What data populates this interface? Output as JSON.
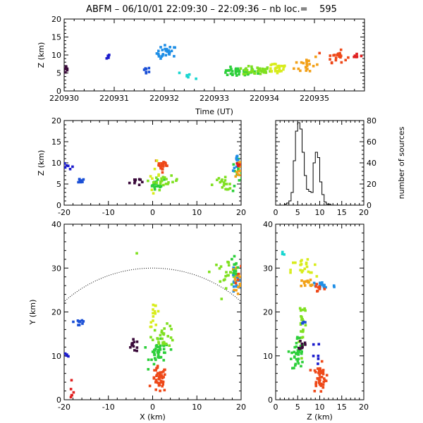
{
  "title": {
    "station": "ABFM",
    "date": "06/10/01",
    "start": "22:09:30",
    "end": "22:09:36",
    "count_label": "nb loc.=",
    "count": "595"
  },
  "chart_data": [
    {
      "id": "time-height",
      "type": "scatter",
      "xlabel": "Time (UT)",
      "ylabel": "Z (km)",
      "xlim": [
        220930,
        220936
      ],
      "ylim": [
        0,
        20
      ],
      "x_ticks": [
        "220930",
        "220931",
        "220932",
        "220933",
        "220934",
        "220935"
      ],
      "y_ticks": [
        "0",
        "5",
        "10",
        "15",
        "20"
      ],
      "clusters": [
        {
          "x": 220930.05,
          "y": 6.0,
          "sx": 0.03,
          "sy": 0.6,
          "n": 10,
          "color": "#3a0a3a"
        },
        {
          "x": 220930.85,
          "y": 9.5,
          "sx": 0.04,
          "sy": 0.4,
          "n": 5,
          "color": "#1a1acc"
        },
        {
          "x": 220931.65,
          "y": 6.0,
          "sx": 0.04,
          "sy": 0.4,
          "n": 7,
          "color": "#1a4fd6"
        },
        {
          "x": 220932.05,
          "y": 10.5,
          "sx": 0.1,
          "sy": 1.1,
          "n": 26,
          "color": "#1e8ee6"
        },
        {
          "x": 220932.55,
          "y": 4.4,
          "sx": 0.12,
          "sy": 0.5,
          "n": 6,
          "color": "#18d6d0"
        },
        {
          "x": 220933.45,
          "y": 5.2,
          "sx": 0.2,
          "sy": 0.6,
          "n": 40,
          "color": "#2ccf3a"
        },
        {
          "x": 220933.85,
          "y": 5.6,
          "sx": 0.14,
          "sy": 0.6,
          "n": 34,
          "color": "#7fe020"
        },
        {
          "x": 220934.25,
          "y": 6.5,
          "sx": 0.12,
          "sy": 0.9,
          "n": 26,
          "color": "#d8ec1c"
        },
        {
          "x": 220934.85,
          "y": 7.4,
          "sx": 0.12,
          "sy": 1.4,
          "n": 20,
          "color": "#f2a018"
        },
        {
          "x": 220935.45,
          "y": 9.6,
          "sx": 0.1,
          "sy": 0.8,
          "n": 22,
          "color": "#ee4818"
        },
        {
          "x": 220935.85,
          "y": 9.6,
          "sx": 0.07,
          "sy": 0.3,
          "n": 8,
          "color": "#e02020"
        }
      ]
    },
    {
      "id": "x-z",
      "type": "scatter",
      "xlabel": "",
      "ylabel": "Z (km)",
      "xlim": [
        -20,
        20
      ],
      "ylim": [
        0,
        20
      ],
      "x_ticks": [
        "-20",
        "-10",
        "0",
        "10",
        "20"
      ],
      "y_ticks": [
        "0",
        "5",
        "10",
        "15",
        "20"
      ],
      "clusters": [
        {
          "x": -19.0,
          "y": 9.3,
          "sx": 0.5,
          "sy": 0.5,
          "n": 6,
          "color": "#1a1acc"
        },
        {
          "x": -16.5,
          "y": 5.8,
          "sx": 0.8,
          "sy": 0.4,
          "n": 8,
          "color": "#1a4fd6"
        },
        {
          "x": -4.0,
          "y": 5.6,
          "sx": 0.6,
          "sy": 0.5,
          "n": 10,
          "color": "#3a0a3a"
        },
        {
          "x": 1.0,
          "y": 5.0,
          "sx": 0.8,
          "sy": 0.6,
          "n": 16,
          "color": "#2ccf3a"
        },
        {
          "x": 3.0,
          "y": 5.6,
          "sx": 1.4,
          "sy": 0.6,
          "n": 20,
          "color": "#7fe020"
        },
        {
          "x": 2.2,
          "y": 9.5,
          "sx": 0.8,
          "sy": 0.8,
          "n": 20,
          "color": "#ee4818"
        },
        {
          "x": 0.4,
          "y": 7.0,
          "sx": 0.6,
          "sy": 1.6,
          "n": 8,
          "color": "#d8ec1c"
        },
        {
          "x": 16.0,
          "y": 5.0,
          "sx": 1.6,
          "sy": 0.7,
          "n": 18,
          "color": "#7fe020"
        },
        {
          "x": 19.0,
          "y": 7.0,
          "sx": 0.6,
          "sy": 2.0,
          "n": 14,
          "color": "#2ccf3a"
        },
        {
          "x": 19.2,
          "y": 10.0,
          "sx": 0.5,
          "sy": 1.0,
          "n": 10,
          "color": "#1e8ee6"
        },
        {
          "x": 19.4,
          "y": 8.0,
          "sx": 0.4,
          "sy": 2.0,
          "n": 10,
          "color": "#f2a018"
        },
        {
          "x": 19.5,
          "y": 9.6,
          "sx": 0.3,
          "sy": 0.3,
          "n": 4,
          "color": "#e02020"
        }
      ]
    },
    {
      "id": "z-histogram",
      "type": "line",
      "xlabel": "",
      "ylabel": "number of sources",
      "xlim": [
        0,
        20
      ],
      "ylim": [
        0,
        80
      ],
      "x_ticks": [
        "0",
        "5",
        "10",
        "15",
        "20"
      ],
      "y_ticks": [
        "0",
        "20",
        "40",
        "60",
        "80"
      ],
      "bin_width": 0.5,
      "bins_start": 0,
      "counts": [
        0,
        0,
        0,
        0,
        1,
        2,
        4,
        12,
        42,
        70,
        78,
        72,
        50,
        28,
        15,
        13,
        12,
        40,
        50,
        45,
        22,
        10,
        3,
        1,
        1,
        0,
        0,
        0,
        0,
        0,
        0,
        0,
        0,
        0,
        0,
        0,
        0,
        0,
        0,
        0
      ]
    },
    {
      "id": "x-y",
      "type": "scatter",
      "xlabel": "X (km)",
      "ylabel": "Y (km)",
      "xlim": [
        -20,
        20
      ],
      "ylim": [
        0,
        40
      ],
      "x_ticks": [
        "-20",
        "-10",
        "0",
        "10",
        "20"
      ],
      "y_ticks": [
        "0",
        "10",
        "20",
        "30",
        "40"
      ],
      "range_ring_radius_km": 30,
      "clusters": [
        {
          "x": -16.5,
          "y": 17.8,
          "sx": 0.7,
          "sy": 0.7,
          "n": 10,
          "color": "#1a4fd6"
        },
        {
          "x": -19.5,
          "y": 10.2,
          "sx": 0.4,
          "sy": 0.6,
          "n": 5,
          "color": "#1a1acc"
        },
        {
          "x": -18.2,
          "y": 1.5,
          "sx": 0.3,
          "sy": 0.9,
          "n": 6,
          "color": "#e02020"
        },
        {
          "x": -4.2,
          "y": 12.3,
          "sx": 0.7,
          "sy": 0.7,
          "n": 12,
          "color": "#3a0a3a"
        },
        {
          "x": 1.5,
          "y": 4.5,
          "sx": 0.8,
          "sy": 1.5,
          "n": 45,
          "color": "#ee4818"
        },
        {
          "x": 1.5,
          "y": 10.5,
          "sx": 1.1,
          "sy": 1.4,
          "n": 40,
          "color": "#2ccf3a"
        },
        {
          "x": 2.5,
          "y": 14.5,
          "sx": 1.3,
          "sy": 1.2,
          "n": 28,
          "color": "#7fe020"
        },
        {
          "x": 0.5,
          "y": 19.5,
          "sx": 0.6,
          "sy": 1.4,
          "n": 14,
          "color": "#d8ec1c"
        },
        {
          "x": -3.5,
          "y": 33.3,
          "sx": 0.1,
          "sy": 0.1,
          "n": 1,
          "color": "#7fe020"
        },
        {
          "x": 16.5,
          "y": 29.0,
          "sx": 1.6,
          "sy": 1.5,
          "n": 24,
          "color": "#7fe020"
        },
        {
          "x": 18.8,
          "y": 26.5,
          "sx": 0.6,
          "sy": 1.6,
          "n": 20,
          "color": "#1e8ee6"
        },
        {
          "x": 19.0,
          "y": 27.5,
          "sx": 0.5,
          "sy": 1.5,
          "n": 14,
          "color": "#f2a018"
        },
        {
          "x": 19.2,
          "y": 28.0,
          "sx": 0.4,
          "sy": 1.2,
          "n": 5,
          "color": "#ee4818"
        },
        {
          "x": 18.5,
          "y": 30.5,
          "sx": 0.6,
          "sy": 1.6,
          "n": 10,
          "color": "#2ccf3a"
        }
      ]
    },
    {
      "id": "z-y",
      "type": "scatter",
      "xlabel": "Z (km)",
      "ylabel": "",
      "xlim": [
        0,
        20
      ],
      "ylim": [
        0,
        40
      ],
      "x_ticks": [
        "0",
        "5",
        "10",
        "15",
        "20"
      ],
      "y_ticks": [
        "0",
        "10",
        "20",
        "30",
        "40"
      ],
      "clusters": [
        {
          "x": 1.5,
          "y": 33.0,
          "sx": 0.3,
          "sy": 0.4,
          "n": 3,
          "color": "#18d6d0"
        },
        {
          "x": 6.5,
          "y": 29.5,
          "sx": 1.5,
          "sy": 1.5,
          "n": 22,
          "color": "#d8ec1c"
        },
        {
          "x": 10.5,
          "y": 26.0,
          "sx": 1.6,
          "sy": 0.7,
          "n": 18,
          "color": "#1e8ee6"
        },
        {
          "x": 7.5,
          "y": 26.5,
          "sx": 1.0,
          "sy": 0.6,
          "n": 12,
          "color": "#f2a018"
        },
        {
          "x": 9.6,
          "y": 25.6,
          "sx": 0.7,
          "sy": 0.6,
          "n": 8,
          "color": "#ee4818"
        },
        {
          "x": 6.0,
          "y": 18.0,
          "sx": 0.5,
          "sy": 3.0,
          "n": 22,
          "color": "#7fe020"
        },
        {
          "x": 5.0,
          "y": 10.5,
          "sx": 0.7,
          "sy": 2.0,
          "n": 38,
          "color": "#2ccf3a"
        },
        {
          "x": 6.0,
          "y": 12.5,
          "sx": 0.3,
          "sy": 0.6,
          "n": 10,
          "color": "#3a0a3a"
        },
        {
          "x": 10.0,
          "y": 5.0,
          "sx": 0.8,
          "sy": 1.6,
          "n": 45,
          "color": "#ee4818"
        },
        {
          "x": 9.0,
          "y": 10.5,
          "sx": 0.5,
          "sy": 1.2,
          "n": 6,
          "color": "#1a1acc"
        },
        {
          "x": 6.0,
          "y": 17.5,
          "sx": 0.3,
          "sy": 0.4,
          "n": 4,
          "color": "#1a4fd6"
        }
      ]
    }
  ]
}
